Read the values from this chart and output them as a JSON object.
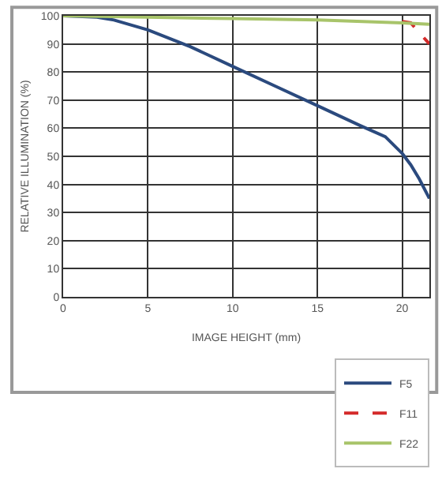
{
  "chart_data": {
    "type": "line",
    "xlabel": "IMAGE HEIGHT (mm)",
    "ylabel": "RELATIVE ILLUMINATION (%)",
    "xlim": [
      0,
      21.6
    ],
    "xticks": [
      0,
      5,
      10,
      15,
      20
    ],
    "ylim": [
      0,
      100
    ],
    "yticks": [
      0,
      10,
      20,
      30,
      40,
      50,
      60,
      70,
      80,
      90,
      100
    ],
    "grid": true,
    "legend": "bottom right",
    "marker": "none",
    "series": [
      {
        "name": "F5",
        "color": "#2b4a7e",
        "line_style": "solid",
        "x": [
          0,
          2,
          3,
          5,
          7.5,
          10,
          12.5,
          15,
          17.5,
          19,
          20,
          20.5,
          21,
          21.6
        ],
        "values": [
          100,
          99.5,
          98.5,
          95,
          89,
          82,
          75,
          68,
          61,
          57,
          51,
          47,
          42,
          35
        ]
      },
      {
        "name": "F11",
        "color": "#d42a2a",
        "line_style": "dashed",
        "x": [
          20,
          20.5,
          21,
          21.6
        ],
        "values": [
          98,
          97.5,
          94,
          90
        ]
      },
      {
        "name": "F22",
        "color": "#a8c46a",
        "line_style": "solid",
        "x": [
          0,
          5,
          10,
          15,
          20,
          21.6
        ],
        "values": [
          100,
          99.5,
          99,
          98.5,
          97.5,
          97
        ]
      }
    ]
  }
}
